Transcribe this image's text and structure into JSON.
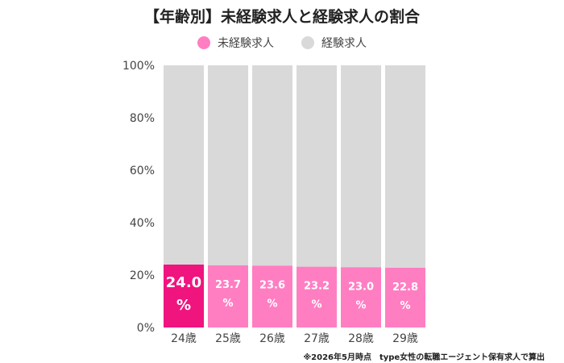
{
  "title": "【年齢別】未経験求人と経験求人の割合",
  "legend": [
    {
      "label": "未経験求人",
      "color": "#ff7ec2"
    },
    {
      "label": "経験求人",
      "color": "#d9d9d9"
    }
  ],
  "footnote": "※2026年5月時点　type女性の転職エージェント保有求人で算出",
  "chart_data": {
    "type": "bar",
    "stacked": true,
    "categories": [
      "24歳",
      "25歳",
      "26歳",
      "27歳",
      "28歳",
      "29歳"
    ],
    "series": [
      {
        "name": "未経験求人",
        "values": [
          24.0,
          23.7,
          23.6,
          23.2,
          23.0,
          22.8
        ],
        "color": "#ff7ec2",
        "highlight_color": "#f0147f",
        "highlight_index": 0
      },
      {
        "name": "経験求人",
        "values": [
          76.0,
          76.3,
          76.4,
          76.8,
          77.0,
          77.2
        ],
        "color": "#d9d9d9"
      }
    ],
    "data_labels": [
      {
        "value": "24.0",
        "unit": "%"
      },
      {
        "value": "23.7",
        "unit": "%"
      },
      {
        "value": "23.6",
        "unit": "%"
      },
      {
        "value": "23.2",
        "unit": "%"
      },
      {
        "value": "23.0",
        "unit": "%"
      },
      {
        "value": "22.8",
        "unit": "%"
      }
    ],
    "yticks": [
      "0%",
      "20%",
      "40%",
      "60%",
      "80%",
      "100%"
    ],
    "ylim": [
      0,
      100
    ],
    "grid": false,
    "legend_position": "top"
  }
}
